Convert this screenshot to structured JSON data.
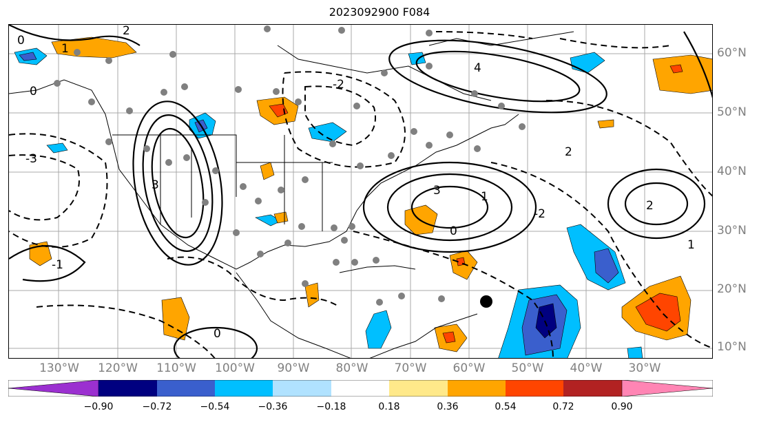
{
  "title": "2023092900 F084",
  "lat_labels": [
    "60°N",
    "50°N",
    "40°N",
    "30°N",
    "20°N",
    "10°N"
  ],
  "lon_labels": [
    "130°W",
    "120°W",
    "110°W",
    "100°W",
    "90°W",
    "80°W",
    "70°W",
    "60°W",
    "50°W",
    "40°W",
    "30°W"
  ],
  "contour_labels": [
    "0",
    "2",
    "1",
    "3",
    "-2",
    "4",
    "-3",
    "0",
    "1",
    "2",
    "3",
    "-1",
    "0",
    "-2",
    "1",
    "0",
    "2"
  ],
  "colorbar": {
    "ticks": [
      "−0.90",
      "−0.72",
      "−0.54",
      "−0.36",
      "−0.18",
      "0.18",
      "0.36",
      "0.54",
      "0.72",
      "0.90"
    ],
    "colors": [
      "#9b30d0",
      "#000080",
      "#3a5fcd",
      "#00bfff",
      "#b0e2ff",
      "#ffffff",
      "#ffe98a",
      "#ffa500",
      "#ff4500",
      "#b22222",
      "#ff85b4"
    ]
  },
  "colors": {
    "orange": "#ffa500",
    "red_orange": "#ff4500",
    "light_blue": "#b0e2ff",
    "sky_blue": "#00bfff",
    "royal_blue": "#3a5fcd",
    "navy": "#000080",
    "station_dot": "#808080",
    "grid": "#a9a9a9"
  }
}
